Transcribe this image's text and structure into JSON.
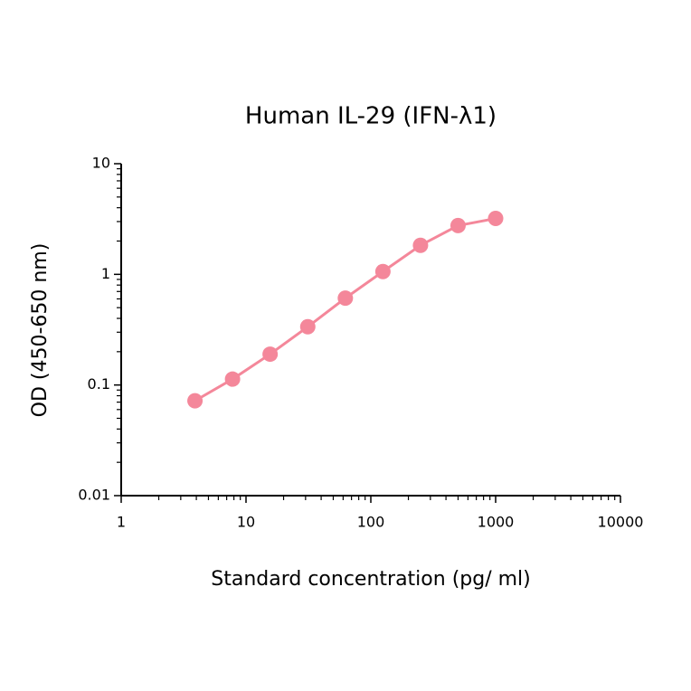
{
  "chart_data": {
    "type": "line",
    "title": "Human IL-29 (IFN-λ1)",
    "x_label": "Standard concentration (pg/ ml)",
    "y_label": "OD (450-650 nm)",
    "x": [
      3.9,
      7.8,
      15.6,
      31.25,
      62.5,
      125,
      250,
      500,
      1000
    ],
    "values": [
      0.072,
      0.113,
      0.19,
      0.336,
      0.61,
      1.06,
      1.83,
      2.76,
      3.2
    ],
    "color": "#f4879a",
    "markers": true,
    "log_x": true,
    "log_y": true,
    "minor_ticks": true,
    "xlim": [
      1,
      10000
    ],
    "xticks": [
      1,
      10,
      100,
      1000,
      10000
    ],
    "ylim": [
      0.01,
      10
    ],
    "yticks": [
      10,
      1,
      0.1,
      0.01
    ]
  }
}
